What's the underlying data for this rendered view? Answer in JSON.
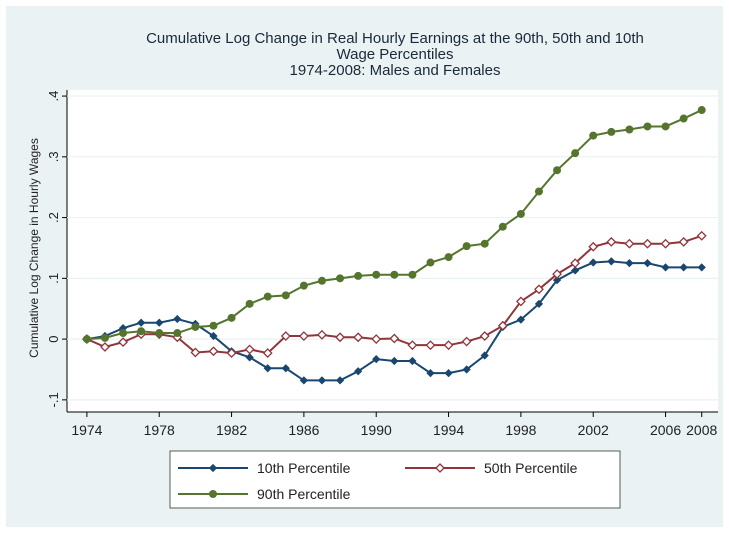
{
  "chart_data": {
    "type": "line",
    "title": [
      "Cumulative Log Change in Real Hourly Earnings at the 90th, 50th and 10th",
      "Wage Percentiles",
      "1974-2008: Males and Females"
    ],
    "y_label": "Cumulative Log Change in Hourly Wages",
    "x": [
      1974,
      1975,
      1976,
      1977,
      1978,
      1979,
      1980,
      1981,
      1982,
      1983,
      1984,
      1985,
      1986,
      1987,
      1988,
      1989,
      1990,
      1991,
      1992,
      1993,
      1994,
      1995,
      1996,
      1997,
      1998,
      1999,
      2000,
      2001,
      2002,
      2003,
      2004,
      2005,
      2006,
      2007,
      2008
    ],
    "series": [
      {
        "name": "10th Percentile",
        "color": "#1a476f",
        "marker": "diamond",
        "values": [
          0,
          0.005,
          0.018,
          0.027,
          0.027,
          0.033,
          0.025,
          0.005,
          -0.02,
          -0.03,
          -0.048,
          -0.048,
          -0.068,
          -0.068,
          -0.068,
          -0.053,
          -0.033,
          -0.036,
          -0.036,
          -0.056,
          -0.056,
          -0.05,
          -0.027,
          0.02,
          0.032,
          0.058,
          0.097,
          0.113,
          0.126,
          0.128,
          0.125,
          0.125,
          0.118,
          0.118,
          0.118
        ]
      },
      {
        "name": "50th Percentile",
        "color": "#90353b",
        "marker": "hollow-diamond",
        "values": [
          0,
          -0.013,
          -0.005,
          0.008,
          0.008,
          0.003,
          -0.022,
          -0.02,
          -0.023,
          -0.017,
          -0.023,
          0.005,
          0.005,
          0.007,
          0.003,
          0.003,
          0,
          0.001,
          -0.01,
          -0.01,
          -0.01,
          -0.004,
          0.005,
          0.022,
          0.062,
          0.082,
          0.107,
          0.125,
          0.152,
          0.16,
          0.157,
          0.157,
          0.157,
          0.16,
          0.17
        ]
      },
      {
        "name": "90th Percentile",
        "color": "#55752f",
        "marker": "circle",
        "values": [
          0,
          0.002,
          0.01,
          0.013,
          0.01,
          0.01,
          0.02,
          0.022,
          0.035,
          0.058,
          0.07,
          0.072,
          0.088,
          0.096,
          0.1,
          0.104,
          0.106,
          0.106,
          0.106,
          0.126,
          0.135,
          0.153,
          0.157,
          0.185,
          0.206,
          0.243,
          0.278,
          0.306,
          0.335,
          0.341,
          0.345,
          0.35,
          0.35,
          0.363,
          0.377
        ]
      }
    ],
    "xlim": [
      1972.9,
      2008.9
    ],
    "xticks": [
      1974,
      1978,
      1982,
      1986,
      1990,
      1994,
      1998,
      2002,
      2006,
      2008
    ],
    "ylim": [
      -0.12,
      0.41
    ],
    "yticks": [
      {
        "value": -0.1,
        "label": "-.1"
      },
      0,
      {
        "value": 0.1,
        "label": ".1"
      },
      {
        "value": 0.2,
        "label": ".2"
      },
      {
        "value": 0.3,
        "label": ".3"
      },
      {
        "value": 0.4,
        "label": ".4"
      }
    ],
    "grid": true,
    "legend": "bottom"
  }
}
